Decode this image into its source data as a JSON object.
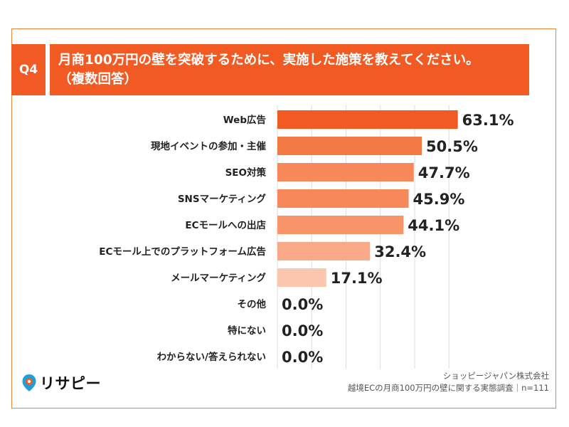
{
  "header": {
    "tag": "Q4",
    "title_line1": "月商100万円の壁を突破するために、実施した施策を教えてください。",
    "title_line2": "（複数回答）"
  },
  "chart_data": {
    "type": "bar",
    "orientation": "horizontal",
    "categories": [
      "Web広告",
      "現地イベントの参加・主催",
      "SEO対策",
      "SNSマーケティング",
      "ECモールへの出店",
      "ECモール上でのプラットフォーム広告",
      "メールマーケティング",
      "その他",
      "特にない",
      "わからない/答えられない"
    ],
    "values": [
      63.1,
      50.5,
      47.7,
      45.9,
      44.1,
      32.4,
      17.1,
      0.0,
      0.0,
      0.0
    ],
    "value_labels": [
      "63.1%",
      "50.5%",
      "47.7%",
      "45.9%",
      "44.1%",
      "32.4%",
      "17.1%",
      "0.0%",
      "0.0%",
      "0.0%"
    ],
    "bar_colors": [
      "#f15a22",
      "#f47a45",
      "#f6885a",
      "#f6885a",
      "#f7946a",
      "#f9a987",
      "#fbc6ae",
      "#fbc6ae",
      "#fbc6ae",
      "#fbc6ae"
    ],
    "xlim": [
      0,
      100
    ],
    "grid": true
  },
  "source": {
    "line1": "ショッピージャパン株式会社",
    "line2": "越境ECの月商100万円の壁に関する実態調査｜n=111"
  },
  "logo": {
    "text": "リサピー",
    "accent_color": "#f15a22",
    "dot_color": "#1e9fd8"
  }
}
